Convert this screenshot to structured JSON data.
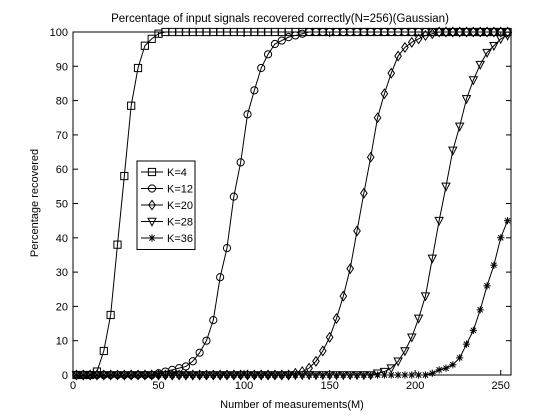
{
  "chart_data": {
    "type": "line",
    "title": "Percentage of input signals recovered correctly(N=256)(Gaussian)",
    "xlabel": "Number of measurements(M)",
    "ylabel": "Percentage recovered",
    "xlim": [
      0,
      256
    ],
    "ylim": [
      0,
      100
    ],
    "xticks": [
      0,
      50,
      100,
      150,
      200,
      250
    ],
    "yticks": [
      0,
      10,
      20,
      30,
      40,
      50,
      60,
      70,
      80,
      90,
      100
    ],
    "grid": false,
    "legend_position": "center-left",
    "x": [
      2,
      6,
      10,
      14,
      18,
      22,
      26,
      30,
      34,
      38,
      42,
      46,
      50,
      54,
      58,
      62,
      66,
      70,
      74,
      78,
      82,
      86,
      90,
      94,
      98,
      102,
      106,
      110,
      114,
      118,
      122,
      126,
      130,
      134,
      138,
      142,
      146,
      150,
      154,
      158,
      162,
      166,
      170,
      174,
      178,
      182,
      186,
      190,
      194,
      198,
      202,
      206,
      210,
      214,
      218,
      222,
      226,
      230,
      234,
      238,
      242,
      246,
      250,
      254
    ],
    "series": [
      {
        "name": "K=4",
        "marker": "square",
        "values": [
          0,
          0,
          0,
          1,
          7,
          17.5,
          38,
          58,
          78.5,
          89.5,
          96,
          98,
          99.5,
          100,
          100,
          100,
          100,
          100,
          100,
          100,
          100,
          100,
          100,
          100,
          100,
          100,
          100,
          100,
          100,
          100,
          100,
          100,
          100,
          100,
          100,
          100,
          100,
          100,
          100,
          100,
          100,
          100,
          100,
          100,
          100,
          100,
          100,
          100,
          100,
          100,
          100,
          100,
          100,
          100,
          100,
          100,
          100,
          100,
          100,
          100,
          100,
          100,
          100,
          100
        ]
      },
      {
        "name": "K=12",
        "marker": "circle",
        "values": [
          0,
          0,
          0,
          0,
          0,
          0,
          0,
          0,
          0,
          0,
          0,
          0,
          0.5,
          1,
          1.5,
          2,
          2.5,
          4,
          6.5,
          10,
          16,
          28.5,
          37,
          52,
          62,
          76,
          83,
          89.5,
          93.5,
          96.5,
          97.5,
          98.5,
          99,
          99.5,
          100,
          100,
          100,
          100,
          100,
          100,
          100,
          100,
          100,
          100,
          100,
          100,
          100,
          100,
          100,
          100,
          100,
          100,
          100,
          100,
          100,
          100,
          100,
          100,
          100,
          100,
          100,
          100,
          100,
          100
        ]
      },
      {
        "name": "K=20",
        "marker": "diamond",
        "values": [
          0,
          0,
          0,
          0,
          0,
          0,
          0,
          0,
          0,
          0,
          0,
          0,
          0,
          0,
          0,
          0,
          0,
          0,
          0,
          0,
          0,
          0,
          0,
          0,
          0,
          0,
          0,
          0,
          0,
          0,
          0,
          0,
          0.5,
          1,
          2,
          4,
          7,
          11,
          16.5,
          23,
          31,
          42,
          53,
          63.5,
          75,
          82,
          88,
          93,
          95.5,
          97,
          98,
          99,
          99.5,
          100,
          100,
          100,
          100,
          100,
          100,
          100,
          100,
          100,
          100,
          100
        ]
      },
      {
        "name": "K=28",
        "marker": "triangle-down",
        "values": [
          0,
          0,
          0,
          0,
          0,
          0,
          0,
          0,
          0,
          0,
          0,
          0,
          0,
          0,
          0,
          0,
          0,
          0,
          0,
          0,
          0,
          0,
          0,
          0,
          0,
          0,
          0,
          0,
          0,
          0,
          0,
          0,
          0,
          0,
          0,
          0,
          0,
          0,
          0,
          0,
          0,
          0,
          0,
          0,
          0.5,
          1,
          2,
          4,
          7,
          11,
          16.5,
          23,
          34,
          45,
          55,
          65.5,
          72.5,
          80.5,
          86,
          90.5,
          94,
          96,
          98,
          99
        ]
      },
      {
        "name": "K=36",
        "marker": "asterisk",
        "values": [
          0,
          0,
          0,
          0,
          0,
          0,
          0,
          0,
          0,
          0,
          0,
          0,
          0,
          0,
          0,
          0,
          0,
          0,
          0,
          0,
          0,
          0,
          0,
          0,
          0,
          0,
          0,
          0,
          0,
          0,
          0,
          0,
          0,
          0,
          0,
          0,
          0,
          0,
          0,
          0,
          0,
          0,
          0,
          0,
          0,
          0,
          0,
          0,
          0,
          0,
          0,
          0,
          0.5,
          1.5,
          2,
          3,
          5,
          9,
          13,
          19,
          26,
          32,
          40,
          45
        ]
      }
    ]
  }
}
